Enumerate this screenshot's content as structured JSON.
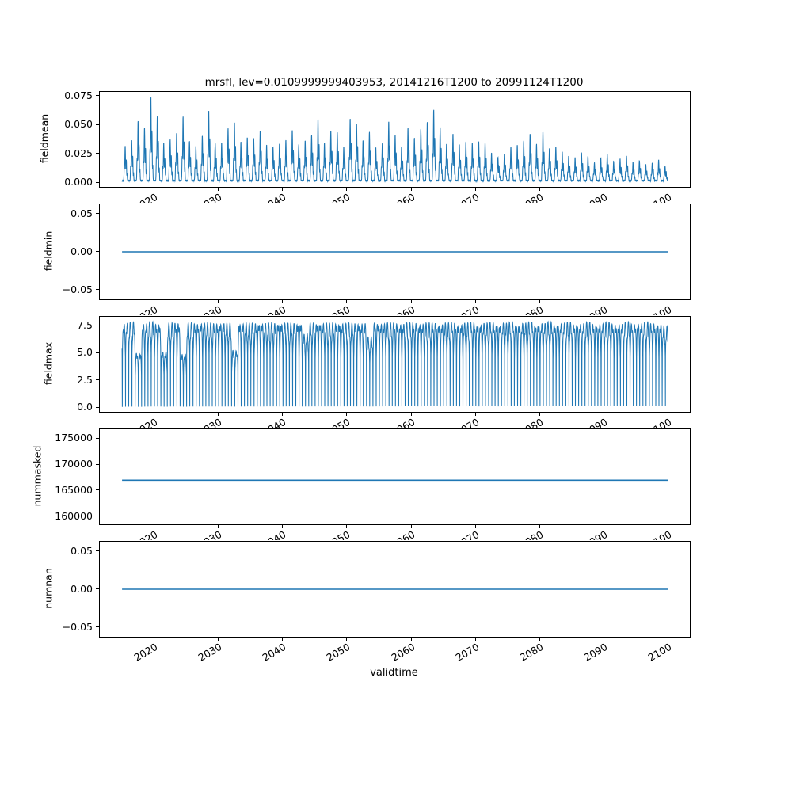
{
  "title": "mrsfl, lev=0.0109999999403953, 20141216T1200 to 20991124T1200",
  "xlabel": "validtime",
  "line_color": "#1f77b4",
  "x": {
    "lim": [
      2011.5,
      2103.3
    ],
    "data_start": 2014.96,
    "data_end": 2099.9,
    "ticks": [
      2020,
      2030,
      2040,
      2050,
      2060,
      2070,
      2080,
      2090,
      2100
    ],
    "tick_labels": [
      "2020",
      "2030",
      "2040",
      "2050",
      "2060",
      "2070",
      "2080",
      "2090",
      "2100"
    ]
  },
  "chart_data": [
    {
      "type": "line",
      "name": "fieldmean",
      "ylabel": "fieldmean",
      "ylim": [
        -0.0037,
        0.0787
      ],
      "yticks": [
        0.0,
        0.025,
        0.05,
        0.075
      ],
      "ytick_labels": [
        "0.000",
        "0.025",
        "0.050",
        "0.075"
      ],
      "series": {
        "kind": "annual_spikes",
        "baseline": 0.001,
        "first_year": 2015,
        "peaks": [
          0.03,
          0.036,
          0.052,
          0.047,
          0.073,
          0.057,
          0.033,
          0.036,
          0.042,
          0.056,
          0.035,
          0.03,
          0.04,
          0.061,
          0.033,
          0.033,
          0.046,
          0.051,
          0.034,
          0.038,
          0.037,
          0.044,
          0.031,
          0.03,
          0.032,
          0.036,
          0.044,
          0.032,
          0.035,
          0.04,
          0.054,
          0.033,
          0.044,
          0.042,
          0.03,
          0.054,
          0.05,
          0.035,
          0.043,
          0.029,
          0.033,
          0.052,
          0.04,
          0.03,
          0.046,
          0.038,
          0.045,
          0.052,
          0.062,
          0.047,
          0.032,
          0.041,
          0.031,
          0.034,
          0.033,
          0.034,
          0.033,
          0.024,
          0.021,
          0.023,
          0.03,
          0.031,
          0.035,
          0.041,
          0.032,
          0.043,
          0.028,
          0.03,
          0.025,
          0.022,
          0.02,
          0.025,
          0.021,
          0.016,
          0.02,
          0.023,
          0.017,
          0.019,
          0.022,
          0.016,
          0.018,
          0.014,
          0.016,
          0.018,
          0.013
        ]
      }
    },
    {
      "type": "line",
      "name": "fieldmin",
      "ylabel": "fieldmin",
      "ylim": [
        -0.0625,
        0.0625
      ],
      "yticks": [
        -0.05,
        0.0,
        0.05
      ],
      "ytick_labels": [
        "−0.05",
        "0.00",
        "0.05"
      ],
      "series": {
        "kind": "constant",
        "value": 0.0
      }
    },
    {
      "type": "line",
      "name": "fieldmax",
      "ylabel": "fieldmax",
      "ylim": [
        -0.4,
        8.35
      ],
      "yticks": [
        0.0,
        2.5,
        5.0,
        7.5
      ],
      "ytick_labels": [
        "0.0",
        "2.5",
        "5.0",
        "7.5"
      ],
      "series": {
        "kind": "dense_oscillation",
        "min": 0.05,
        "cycles_per_year": 2,
        "first_year": 2015,
        "tops": [
          7.8,
          7.9,
          5.1,
          7.8,
          7.9,
          7.8,
          5.2,
          7.8,
          7.9,
          5.0,
          7.8,
          7.8,
          7.9,
          7.8,
          7.8,
          7.9,
          7.8,
          5.3,
          7.9,
          7.8,
          7.8,
          7.9,
          7.8,
          7.8,
          7.9,
          7.8,
          7.8,
          7.9,
          6.8,
          7.8,
          7.9,
          7.8,
          7.8,
          7.9,
          7.8,
          7.8,
          7.9,
          7.8,
          6.5,
          7.9,
          7.8,
          7.8,
          7.9,
          7.8,
          7.8,
          7.9,
          7.8,
          7.8,
          7.9,
          7.8,
          7.8,
          7.9,
          7.8,
          7.8,
          7.9,
          7.8,
          7.8,
          7.9,
          7.8,
          7.8,
          7.9,
          7.8,
          7.8,
          7.9,
          7.8,
          7.8,
          7.9,
          7.8,
          7.8,
          7.9,
          7.8,
          7.8,
          7.9,
          7.8,
          7.8,
          7.9,
          7.8,
          7.8,
          7.9,
          7.8,
          7.8,
          7.9,
          7.8,
          7.8,
          7.5
        ]
      }
    },
    {
      "type": "line",
      "name": "nummasked",
      "ylabel": "nummasked",
      "ylim": [
        158500,
        176800
      ],
      "yticks": [
        160000,
        165000,
        170000,
        175000
      ],
      "ytick_labels": [
        "160000",
        "165000",
        "170000",
        "175000"
      ],
      "series": {
        "kind": "constant",
        "value": 167000
      }
    },
    {
      "type": "line",
      "name": "numnan",
      "ylabel": "numnan",
      "ylim": [
        -0.0625,
        0.0625
      ],
      "yticks": [
        -0.05,
        0.0,
        0.05
      ],
      "ytick_labels": [
        "−0.05",
        "0.00",
        "0.05"
      ],
      "series": {
        "kind": "constant",
        "value": 0.0
      }
    }
  ]
}
